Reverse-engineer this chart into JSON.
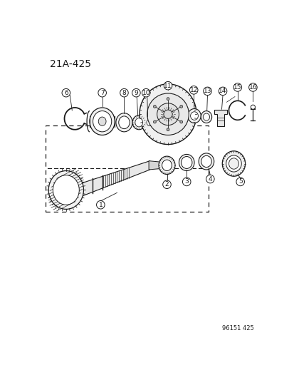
{
  "title": "21A-425",
  "figure_id": "96151 425",
  "bg_color": "#ffffff",
  "line_color": "#1a1a1a"
}
